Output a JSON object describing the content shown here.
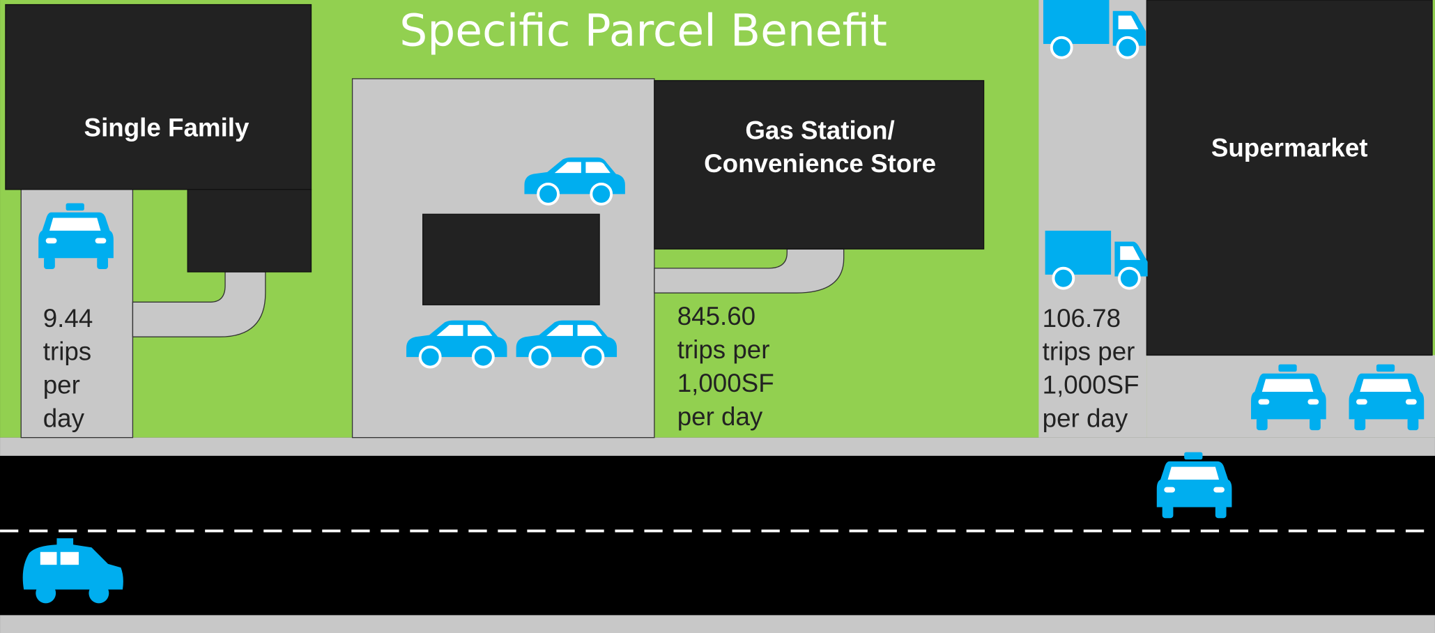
{
  "title": "Specific Parcel Benefit",
  "parcels": [
    {
      "label": [
        "Single Family"
      ],
      "rate": [
        "9.44",
        "trips",
        "per",
        "day"
      ]
    },
    {
      "label": [
        "Gas Station/",
        "Convenience Store"
      ],
      "rate": [
        "845.60",
        "trips per",
        "1,000SF",
        "per day"
      ]
    },
    {
      "label": [
        "Supermarket"
      ],
      "rate": [
        "106.78",
        "trips per",
        "1,000SF",
        "per day"
      ]
    }
  ]
}
